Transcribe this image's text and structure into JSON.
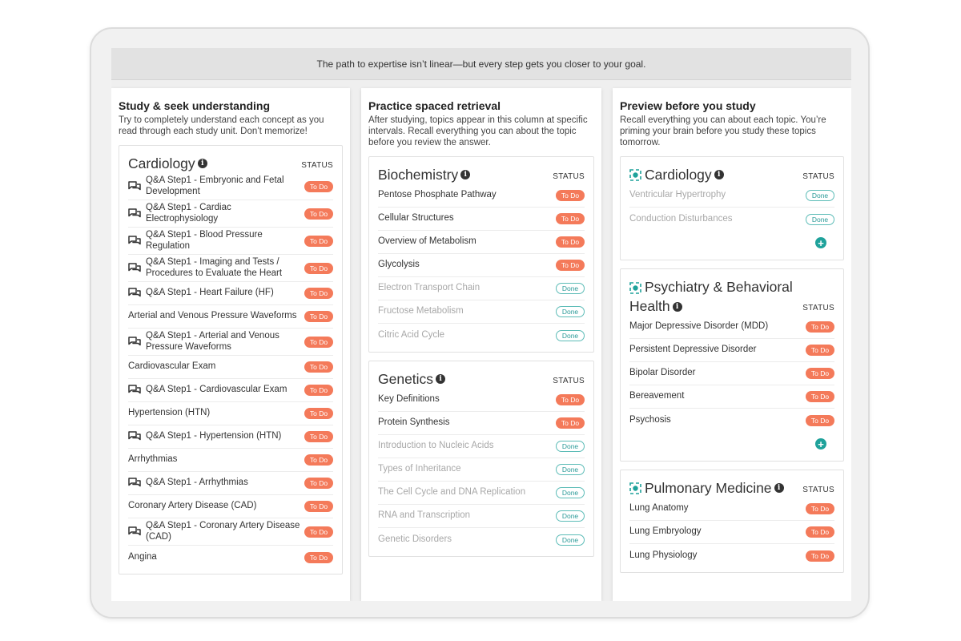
{
  "banner": "The path to expertise isn’t linear—but every step gets you closer to your goal.",
  "status_label": "STATUS",
  "badges": {
    "todo": "To Do",
    "done": "Done"
  },
  "colors": {
    "todo": "#f47a5a",
    "done": "#2b9a98",
    "accent": "#1fa29b"
  },
  "columns": [
    {
      "title": "Study & seek understanding",
      "desc": "Try to completely understand each concept as you read through each study unit. Don’t memorize!",
      "cards": [
        {
          "title": "Cardiology",
          "items": [
            {
              "label": "Q&A Step1 - Embryonic and Fetal Development",
              "qa": true,
              "status": "To Do"
            },
            {
              "label": "Q&A Step1 - Cardiac Electrophysiology",
              "qa": true,
              "status": "To Do"
            },
            {
              "label": "Q&A Step1 - Blood Pressure Regulation",
              "qa": true,
              "status": "To Do"
            },
            {
              "label": "Q&A Step1 - Imaging and Tests / Procedures to Evaluate the Heart",
              "qa": true,
              "status": "To Do"
            },
            {
              "label": "Q&A Step1 - Heart Failure (HF)",
              "qa": true,
              "status": "To Do"
            },
            {
              "label": "Arterial and Venous Pressure Waveforms",
              "qa": false,
              "status": "To Do"
            },
            {
              "label": "Q&A Step1 - Arterial and Venous Pressure Waveforms",
              "qa": true,
              "status": "To Do"
            },
            {
              "label": "Cardiovascular Exam",
              "qa": false,
              "status": "To Do"
            },
            {
              "label": "Q&A Step1 - Cardiovascular Exam",
              "qa": true,
              "status": "To Do"
            },
            {
              "label": "Hypertension (HTN)",
              "qa": false,
              "status": "To Do"
            },
            {
              "label": "Q&A Step1 - Hypertension (HTN)",
              "qa": true,
              "status": "To Do"
            },
            {
              "label": "Arrhythmias",
              "qa": false,
              "status": "To Do"
            },
            {
              "label": "Q&A Step1 - Arrhythmias",
              "qa": true,
              "status": "To Do"
            },
            {
              "label": "Coronary Artery Disease (CAD)",
              "qa": false,
              "status": "To Do"
            },
            {
              "label": "Q&A Step1 - Coronary Artery Disease (CAD)",
              "qa": true,
              "status": "To Do"
            },
            {
              "label": "Angina",
              "qa": false,
              "status": "To Do"
            }
          ]
        }
      ]
    },
    {
      "title": "Practice spaced retrieval",
      "desc": "After studying, topics appear in this column at specific intervals. Recall everything you can about the topic before you review the answer.",
      "cards": [
        {
          "title": "Biochemistry",
          "items": [
            {
              "label": "Pentose Phosphate Pathway",
              "status": "To Do"
            },
            {
              "label": "Cellular Structures",
              "status": "To Do"
            },
            {
              "label": "Overview of Metabolism",
              "status": "To Do"
            },
            {
              "label": "Glycolysis",
              "status": "To Do"
            },
            {
              "label": "Electron Transport Chain",
              "status": "Done"
            },
            {
              "label": "Fructose Metabolism",
              "status": "Done"
            },
            {
              "label": "Citric Acid Cycle",
              "status": "Done"
            }
          ]
        },
        {
          "title": "Genetics",
          "items": [
            {
              "label": "Key Definitions",
              "status": "To Do"
            },
            {
              "label": "Protein Synthesis",
              "status": "To Do"
            },
            {
              "label": "Introduction to Nucleic Acids",
              "status": "Done"
            },
            {
              "label": "Types of Inheritance",
              "status": "Done"
            },
            {
              "label": "The Cell Cycle and DNA Replication",
              "status": "Done"
            },
            {
              "label": "RNA and Transcription",
              "status": "Done"
            },
            {
              "label": "Genetic Disorders",
              "status": "Done"
            }
          ]
        }
      ]
    },
    {
      "title": "Preview before you study",
      "desc": "Recall everything you can about each topic. You’re priming your brain before you study these topics tomorrow.",
      "cards": [
        {
          "title": "Cardiology",
          "add": true,
          "items": [
            {
              "label": "Ventricular Hypertrophy",
              "status": "Done"
            },
            {
              "label": "Conduction Disturbances",
              "status": "Done"
            }
          ]
        },
        {
          "title": "Psychiatry & Behavioral Health",
          "add": true,
          "items": [
            {
              "label": "Major Depressive Disorder (MDD)",
              "status": "To Do"
            },
            {
              "label": "Persistent Depressive Disorder",
              "status": "To Do"
            },
            {
              "label": "Bipolar Disorder",
              "status": "To Do"
            },
            {
              "label": "Bereavement",
              "status": "To Do"
            },
            {
              "label": "Psychosis",
              "status": "To Do"
            }
          ]
        },
        {
          "title": "Pulmonary Medicine",
          "items": [
            {
              "label": "Lung Anatomy",
              "status": "To Do"
            },
            {
              "label": "Lung Embryology",
              "status": "To Do"
            },
            {
              "label": "Lung Physiology",
              "status": "To Do"
            }
          ]
        }
      ]
    }
  ]
}
